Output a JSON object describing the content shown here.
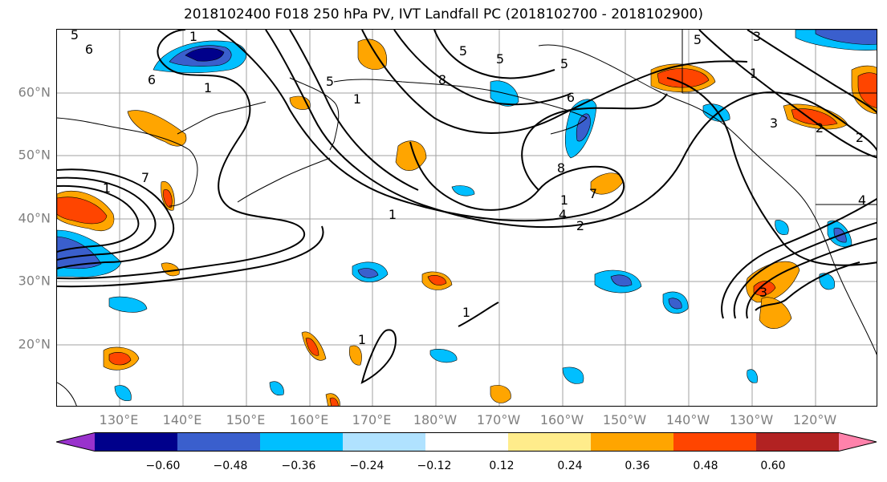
{
  "title": "2018102400 F018 250 hPa PV, IVT Landfall PC (2018102700 - 2018102900)",
  "lat_labels": [
    "60°N",
    "50°N",
    "40°N",
    "30°N",
    "20°N"
  ],
  "lon_labels": [
    "130°E",
    "140°E",
    "150°E",
    "160°E",
    "170°E",
    "180°W",
    "170°W",
    "160°W",
    "150°W",
    "140°W",
    "130°W",
    "120°W"
  ],
  "contour_labels": [
    "5",
    "6",
    "1",
    "6",
    "1",
    "7",
    "1",
    "5",
    "8",
    "1",
    "5",
    "5",
    "5",
    "6",
    "7",
    "1",
    "8",
    "1",
    "2",
    "5",
    "3",
    "2",
    "4",
    "2",
    "3",
    "1",
    "3",
    "1",
    "1",
    "4"
  ],
  "colorbar": {
    "ticks": [
      "−0.60",
      "−0.48",
      "−0.36",
      "−0.24",
      "−0.12",
      "0.12",
      "0.24",
      "0.36",
      "0.48",
      "0.60"
    ],
    "colors": [
      "#9932cc",
      "#00008b",
      "#3a5fcd",
      "#00bfff",
      "#b0e2ff",
      "#ffffff",
      "#ffec8b",
      "#ffa500",
      "#ff4500",
      "#b22222",
      "#ff82ab"
    ]
  }
}
